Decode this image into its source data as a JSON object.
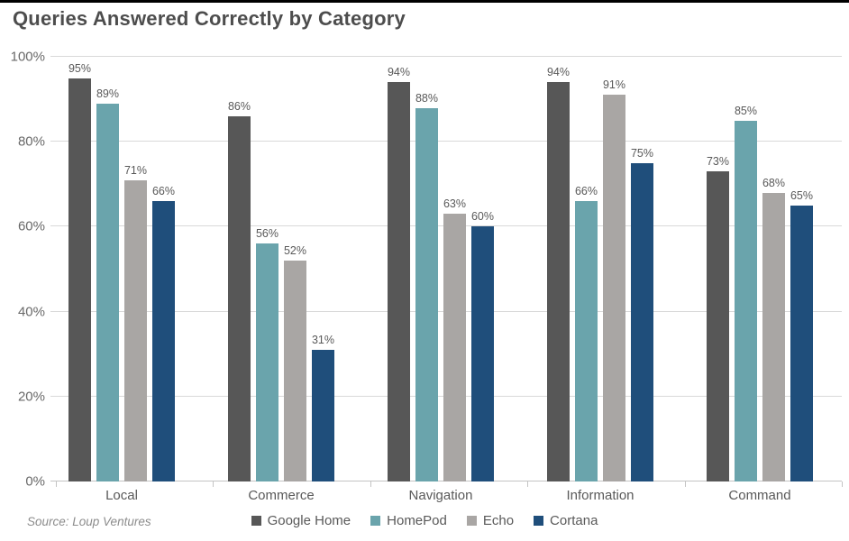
{
  "title": "Queries Answered Correctly by Category",
  "source": "Source: Loup Ventures",
  "chart_data": {
    "type": "bar",
    "title": "Queries Answered Correctly by Category",
    "categories": [
      "Local",
      "Commerce",
      "Navigation",
      "Information",
      "Command"
    ],
    "series": [
      {
        "name": "Google Home",
        "color": "#575757",
        "values": [
          95,
          86,
          94,
          94,
          73
        ]
      },
      {
        "name": "HomePod",
        "color": "#6AA4AC",
        "values": [
          89,
          56,
          88,
          66,
          85
        ]
      },
      {
        "name": "Echo",
        "color": "#A9A6A4",
        "values": [
          71,
          52,
          63,
          91,
          68
        ]
      },
      {
        "name": "Cortana",
        "color": "#1F4E7B",
        "values": [
          66,
          31,
          60,
          75,
          65
        ]
      }
    ],
    "xlabel": "",
    "ylabel": "",
    "ylim": [
      0,
      100
    ],
    "yticks": [
      {
        "value": 0,
        "label": "0%"
      },
      {
        "value": 20,
        "label": "20%"
      },
      {
        "value": 40,
        "label": "40%"
      },
      {
        "value": 60,
        "label": "60%"
      },
      {
        "value": 80,
        "label": "80%"
      },
      {
        "value": 100,
        "label": "100%"
      }
    ],
    "grid": "horizontal",
    "legend_position": "bottom",
    "data_label_format": "{value}%",
    "grid_color": "#D9D9D9",
    "axis_text_color": "#696969",
    "label_text_color": "#595959",
    "title_color": "#4D4D4D"
  }
}
